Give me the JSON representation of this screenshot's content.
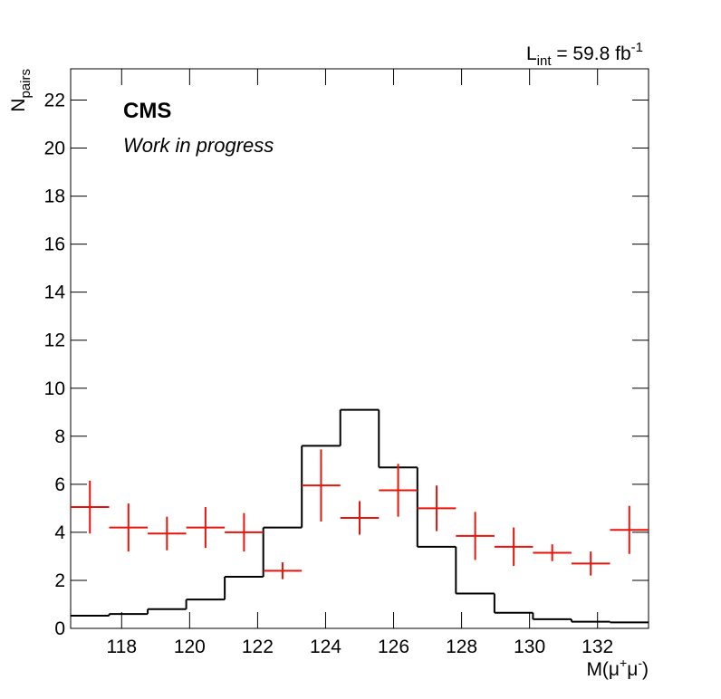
{
  "chart_data": {
    "type": "histogram",
    "title": "CMS",
    "subtitle": "Work in progress",
    "annotation": {
      "symbol": "L",
      "subscript": "int",
      "text": " = 59.8 fb",
      "superscript": "-1"
    },
    "x_label": {
      "text": "M(μ",
      "sup1": "+",
      "mid": "μ",
      "sup2": "-",
      "end": ")"
    },
    "y_label": {
      "symbol": "N",
      "subscript": "pairs"
    },
    "bins": [
      116.5,
      117.633,
      118.767,
      119.9,
      121.033,
      122.167,
      123.3,
      124.433,
      125.567,
      126.7,
      127.833,
      128.967,
      130.1,
      131.233,
      132.367,
      133.5
    ],
    "series": [
      {
        "color": "#000000",
        "style": "step",
        "values": [
          0.53,
          0.6,
          0.8,
          1.2,
          2.15,
          4.2,
          7.6,
          9.1,
          6.7,
          3.4,
          1.45,
          0.65,
          0.38,
          0.28,
          0.25
        ]
      },
      {
        "color": "#e8140c",
        "style": "points",
        "values": [
          5.05,
          4.2,
          3.95,
          4.2,
          4.0,
          2.4,
          5.95,
          4.6,
          5.75,
          5.0,
          3.85,
          3.4,
          3.15,
          2.7,
          4.1
        ],
        "errors": [
          1.1,
          1.0,
          0.7,
          0.85,
          0.8,
          0.35,
          1.5,
          0.7,
          1.1,
          0.95,
          1.0,
          0.8,
          0.35,
          0.5,
          1.0
        ]
      }
    ],
    "xlim": [
      116.5,
      133.5
    ],
    "ylim": [
      0,
      23.3
    ],
    "xticks": [
      118,
      120,
      122,
      124,
      126,
      128,
      130,
      132
    ],
    "yticks": [
      0,
      2,
      4,
      6,
      8,
      10,
      12,
      14,
      16,
      18,
      20,
      22
    ]
  }
}
